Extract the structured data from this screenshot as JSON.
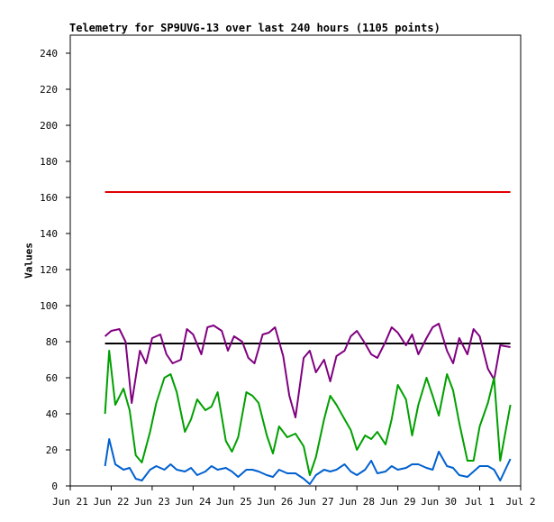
{
  "chart_data": {
    "type": "line",
    "title": "Telemetry for SP9UVG-13 over last 240 hours (1105 points)",
    "ylabel": "Values",
    "xlabel": "",
    "ylim": [
      0,
      250
    ],
    "y_ticks": [
      0,
      20,
      40,
      60,
      80,
      100,
      120,
      140,
      160,
      180,
      200,
      220,
      240
    ],
    "xlim": [
      0,
      11
    ],
    "x_ticks": [
      {
        "x": 0,
        "label": "Jun 21"
      },
      {
        "x": 1,
        "label": "Jun 22"
      },
      {
        "x": 2,
        "label": "Jun 23"
      },
      {
        "x": 3,
        "label": "Jun 24"
      },
      {
        "x": 4,
        "label": "Jun 25"
      },
      {
        "x": 5,
        "label": "Jun 26"
      },
      {
        "x": 6,
        "label": "Jun 27"
      },
      {
        "x": 7,
        "label": "Jun 28"
      },
      {
        "x": 8,
        "label": "Jun 29"
      },
      {
        "x": 9,
        "label": "Jun 30"
      },
      {
        "x": 10,
        "label": "Jul 1"
      },
      {
        "x": 11,
        "label": "Jul 2"
      }
    ],
    "grid": false,
    "legend": "none",
    "series": [
      {
        "color": "#e00000",
        "x": [
          0.85,
          10.75
        ],
        "y": [
          163,
          163
        ]
      },
      {
        "color": "#000000",
        "x": [
          0.85,
          10.75
        ],
        "y": [
          79,
          79
        ]
      },
      {
        "color": "#800080",
        "x": [
          0.85,
          1.0,
          1.2,
          1.35,
          1.5,
          1.7,
          1.85,
          2.0,
          2.2,
          2.35,
          2.5,
          2.7,
          2.85,
          3.0,
          3.2,
          3.35,
          3.5,
          3.7,
          3.85,
          4.0,
          4.2,
          4.35,
          4.5,
          4.7,
          4.85,
          5.0,
          5.2,
          5.35,
          5.5,
          5.7,
          5.85,
          6.0,
          6.2,
          6.35,
          6.5,
          6.7,
          6.85,
          7.0,
          7.2,
          7.35,
          7.5,
          7.7,
          7.85,
          8.0,
          8.2,
          8.35,
          8.5,
          8.7,
          8.85,
          9.0,
          9.2,
          9.35,
          9.5,
          9.7,
          9.85,
          10.0,
          10.2,
          10.35,
          10.5,
          10.75
        ],
        "y": [
          83,
          86,
          87,
          80,
          46,
          75,
          68,
          82,
          84,
          73,
          68,
          70,
          87,
          84,
          73,
          88,
          89,
          86,
          75,
          83,
          80,
          71,
          68,
          84,
          85,
          88,
          72,
          50,
          38,
          71,
          75,
          63,
          70,
          58,
          72,
          75,
          83,
          86,
          79,
          73,
          71,
          80,
          88,
          85,
          78,
          84,
          73,
          82,
          88,
          90,
          75,
          68,
          82,
          73,
          87,
          83,
          65,
          59,
          78,
          77
        ]
      },
      {
        "color": "#00a000",
        "x": [
          0.85,
          0.95,
          1.1,
          1.3,
          1.45,
          1.6,
          1.75,
          1.95,
          2.1,
          2.3,
          2.45,
          2.6,
          2.8,
          2.95,
          3.1,
          3.3,
          3.45,
          3.6,
          3.8,
          3.95,
          4.1,
          4.3,
          4.45,
          4.6,
          4.8,
          4.95,
          5.1,
          5.3,
          5.5,
          5.7,
          5.85,
          6.0,
          6.2,
          6.35,
          6.5,
          6.7,
          6.85,
          7.0,
          7.2,
          7.35,
          7.5,
          7.7,
          7.85,
          8.0,
          8.2,
          8.35,
          8.5,
          8.7,
          8.85,
          9.0,
          9.2,
          9.35,
          9.5,
          9.7,
          9.85,
          10.0,
          10.2,
          10.35,
          10.5,
          10.75
        ],
        "y": [
          40,
          75,
          45,
          54,
          42,
          17,
          13,
          30,
          46,
          60,
          62,
          52,
          30,
          37,
          48,
          42,
          44,
          52,
          25,
          19,
          27,
          52,
          50,
          46,
          28,
          18,
          33,
          27,
          29,
          22,
          6,
          16,
          37,
          50,
          45,
          37,
          31,
          20,
          28,
          26,
          30,
          23,
          37,
          56,
          48,
          28,
          45,
          60,
          50,
          39,
          62,
          53,
          35,
          14,
          14,
          33,
          46,
          60,
          14,
          45
        ]
      },
      {
        "color": "#0060d0",
        "x": [
          0.85,
          0.95,
          1.1,
          1.3,
          1.45,
          1.6,
          1.75,
          1.95,
          2.1,
          2.3,
          2.45,
          2.6,
          2.8,
          2.95,
          3.1,
          3.3,
          3.45,
          3.6,
          3.8,
          3.95,
          4.1,
          4.3,
          4.45,
          4.6,
          4.8,
          4.95,
          5.1,
          5.3,
          5.5,
          5.7,
          5.85,
          6.0,
          6.2,
          6.35,
          6.5,
          6.7,
          6.85,
          7.0,
          7.2,
          7.35,
          7.5,
          7.7,
          7.85,
          8.0,
          8.2,
          8.35,
          8.5,
          8.7,
          8.85,
          9.0,
          9.2,
          9.35,
          9.5,
          9.7,
          9.85,
          10.0,
          10.2,
          10.35,
          10.5,
          10.75
        ],
        "y": [
          11,
          26,
          12,
          9,
          10,
          4,
          3,
          9,
          11,
          9,
          12,
          9,
          8,
          10,
          6,
          8,
          11,
          9,
          10,
          8,
          5,
          9,
          9,
          8,
          6,
          5,
          9,
          7,
          7,
          4,
          1,
          6,
          9,
          8,
          9,
          12,
          8,
          6,
          9,
          14,
          7,
          8,
          11,
          9,
          10,
          12,
          12,
          10,
          9,
          19,
          11,
          10,
          6,
          5,
          8,
          11,
          11,
          9,
          3,
          15
        ]
      }
    ]
  }
}
